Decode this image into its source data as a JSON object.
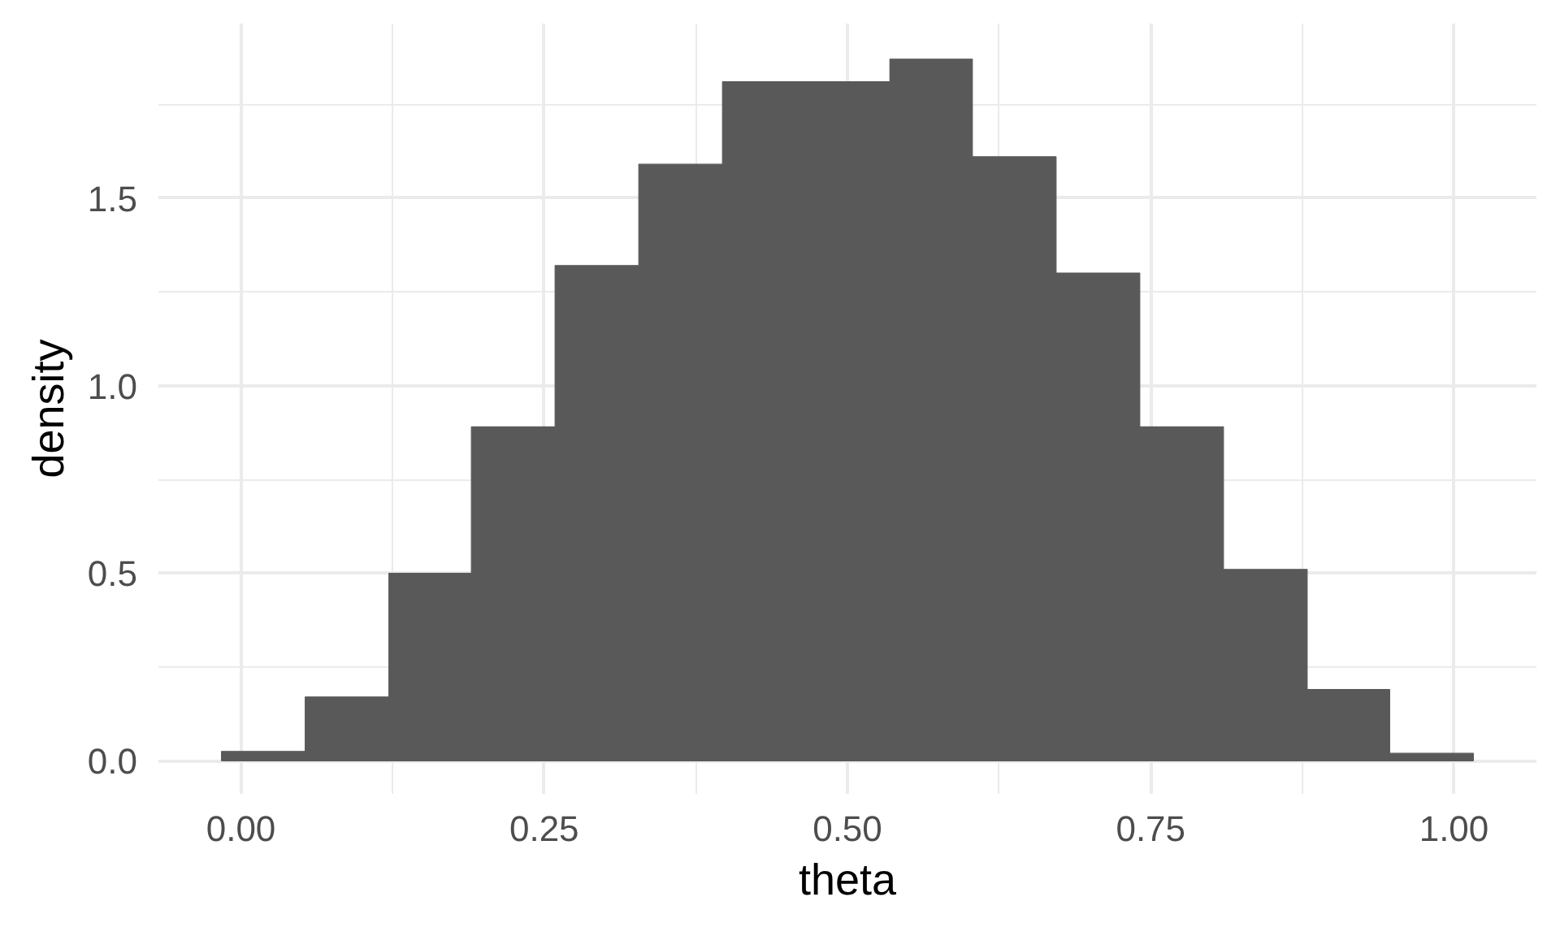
{
  "chart_data": {
    "type": "histogram",
    "xlabel": "theta",
    "ylabel": "density",
    "bins": [
      -0.016,
      0.053,
      0.122,
      0.19,
      0.259,
      0.328,
      0.397,
      0.466,
      0.535,
      0.603,
      0.672,
      0.741,
      0.81,
      0.879,
      0.947,
      1.016
    ],
    "values": [
      0.025,
      0.17,
      0.5,
      0.89,
      1.32,
      1.59,
      1.81,
      1.81,
      1.87,
      1.61,
      1.3,
      0.89,
      0.51,
      0.19,
      0.02
    ],
    "color": "#595959",
    "xlim": [
      -0.068,
      1.068
    ],
    "ylim": [
      -0.088,
      1.965
    ],
    "xticks": [
      {
        "value": 0,
        "label": "0.00"
      },
      {
        "value": 0.25,
        "label": "0.25"
      },
      {
        "value": 0.5,
        "label": "0.50"
      },
      {
        "value": 0.75,
        "label": "0.75"
      },
      {
        "value": 1,
        "label": "1.00"
      }
    ],
    "yticks": [
      {
        "value": 0,
        "label": "0.0"
      },
      {
        "value": 0.5,
        "label": "0.5"
      },
      {
        "value": 1,
        "label": "1.0"
      },
      {
        "value": 1.5,
        "label": "1.5"
      }
    ],
    "grid": true
  }
}
